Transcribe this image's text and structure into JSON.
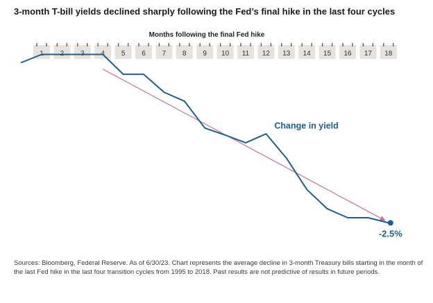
{
  "title": "3-month T-bill yields declined sharply following the Fed’s final hike in the last four cycles",
  "source_note": "Sources: Bloomberg, Federal Reserve. As of 6/30/23. Chart represents the average decline in 3-month Treasury bills starting in the month of the last Fed hike in the last four transition cycles from 1995 to 2018. Past results are not predictive of results in future periods.",
  "chart_data": {
    "type": "line",
    "xlabel": "Months following the final Fed hike",
    "categories": [
      "1",
      "2",
      "3",
      "4",
      "5",
      "6",
      "7",
      "8",
      "9",
      "10",
      "11",
      "12",
      "13",
      "14",
      "15",
      "16",
      "17",
      "18"
    ],
    "series": [
      {
        "name": "Change in yield",
        "x": [
          0,
          1,
          2,
          3,
          4,
          5,
          6,
          7,
          8,
          9,
          10,
          11,
          12,
          13,
          14,
          15,
          16,
          17,
          18
        ],
        "values": [
          0.0,
          0.13,
          0.13,
          0.13,
          0.13,
          -0.18,
          -0.18,
          -0.46,
          -0.6,
          -1.02,
          -1.13,
          -1.25,
          -1.11,
          -1.49,
          -1.98,
          -2.28,
          -2.42,
          -2.42,
          -2.5
        ]
      }
    ],
    "end_label": "-2.5%",
    "trend_arrow": {
      "from_x": 4,
      "from_y": -0.1,
      "to_x": 18,
      "to_y": -2.49
    },
    "ylim": [
      -2.68,
      0.2
    ],
    "colors": {
      "line": "#1f5d8c",
      "trend": "#c4749b",
      "tab": "#e6e2dd",
      "tab_text": "#333333"
    }
  }
}
